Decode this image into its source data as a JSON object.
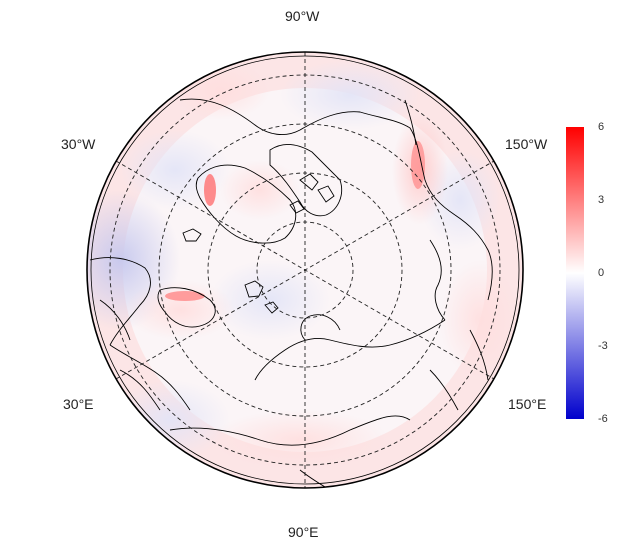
{
  "map": {
    "projection": "north-polar-stereographic",
    "longitude_labels": {
      "top": "90°W",
      "left_upper": "30°W",
      "right_upper": "150°W",
      "left_lower": "30°E",
      "right_lower": "150°E",
      "bottom": "90°E"
    }
  },
  "colorbar": {
    "ticks": [
      "6",
      "3",
      "0",
      "-3",
      "-6"
    ],
    "range": [
      -6,
      6
    ],
    "colors": {
      "high": "#ff0000",
      "mid": "#ffffff",
      "low": "#0000cc"
    }
  }
}
